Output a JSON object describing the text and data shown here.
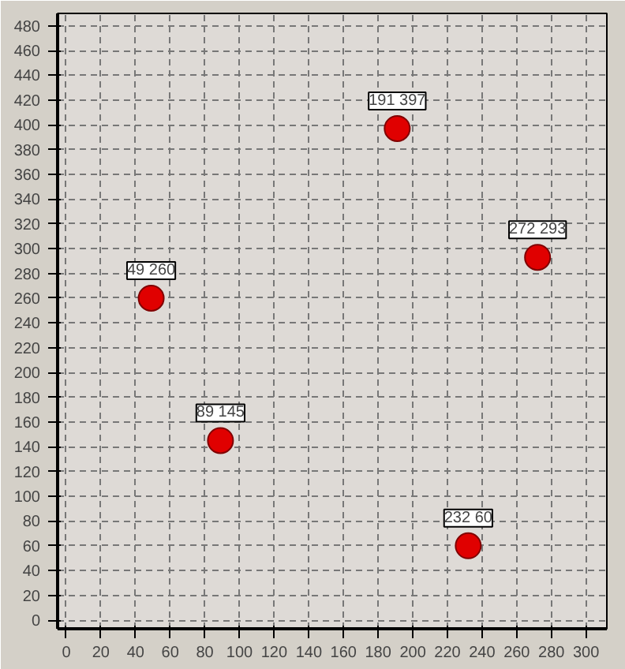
{
  "chart_data": {
    "type": "scatter",
    "x": [
      49,
      89,
      191,
      272,
      232
    ],
    "values": [
      260,
      145,
      397,
      293,
      60
    ],
    "annotations": [
      {
        "text": "49 260",
        "x": 49,
        "y": 260
      },
      {
        "text": "89 145",
        "x": 89,
        "y": 145
      },
      {
        "text": "191 397",
        "x": 191,
        "y": 397
      },
      {
        "text": "272 293",
        "x": 272,
        "y": 293
      },
      {
        "text": "232 60",
        "x": 232,
        "y": 60
      }
    ],
    "color": "#e00000",
    "marker": "circle",
    "xlim": [
      -5,
      312
    ],
    "ylim": [
      -7,
      490
    ],
    "xticks": [
      0,
      20,
      40,
      60,
      80,
      100,
      120,
      140,
      160,
      180,
      200,
      220,
      240,
      260,
      280,
      300
    ],
    "yticks": [
      0,
      20,
      40,
      60,
      80,
      100,
      120,
      140,
      160,
      180,
      200,
      220,
      240,
      260,
      280,
      300,
      320,
      340,
      360,
      380,
      400,
      420,
      440,
      460,
      480
    ],
    "grid": true
  }
}
